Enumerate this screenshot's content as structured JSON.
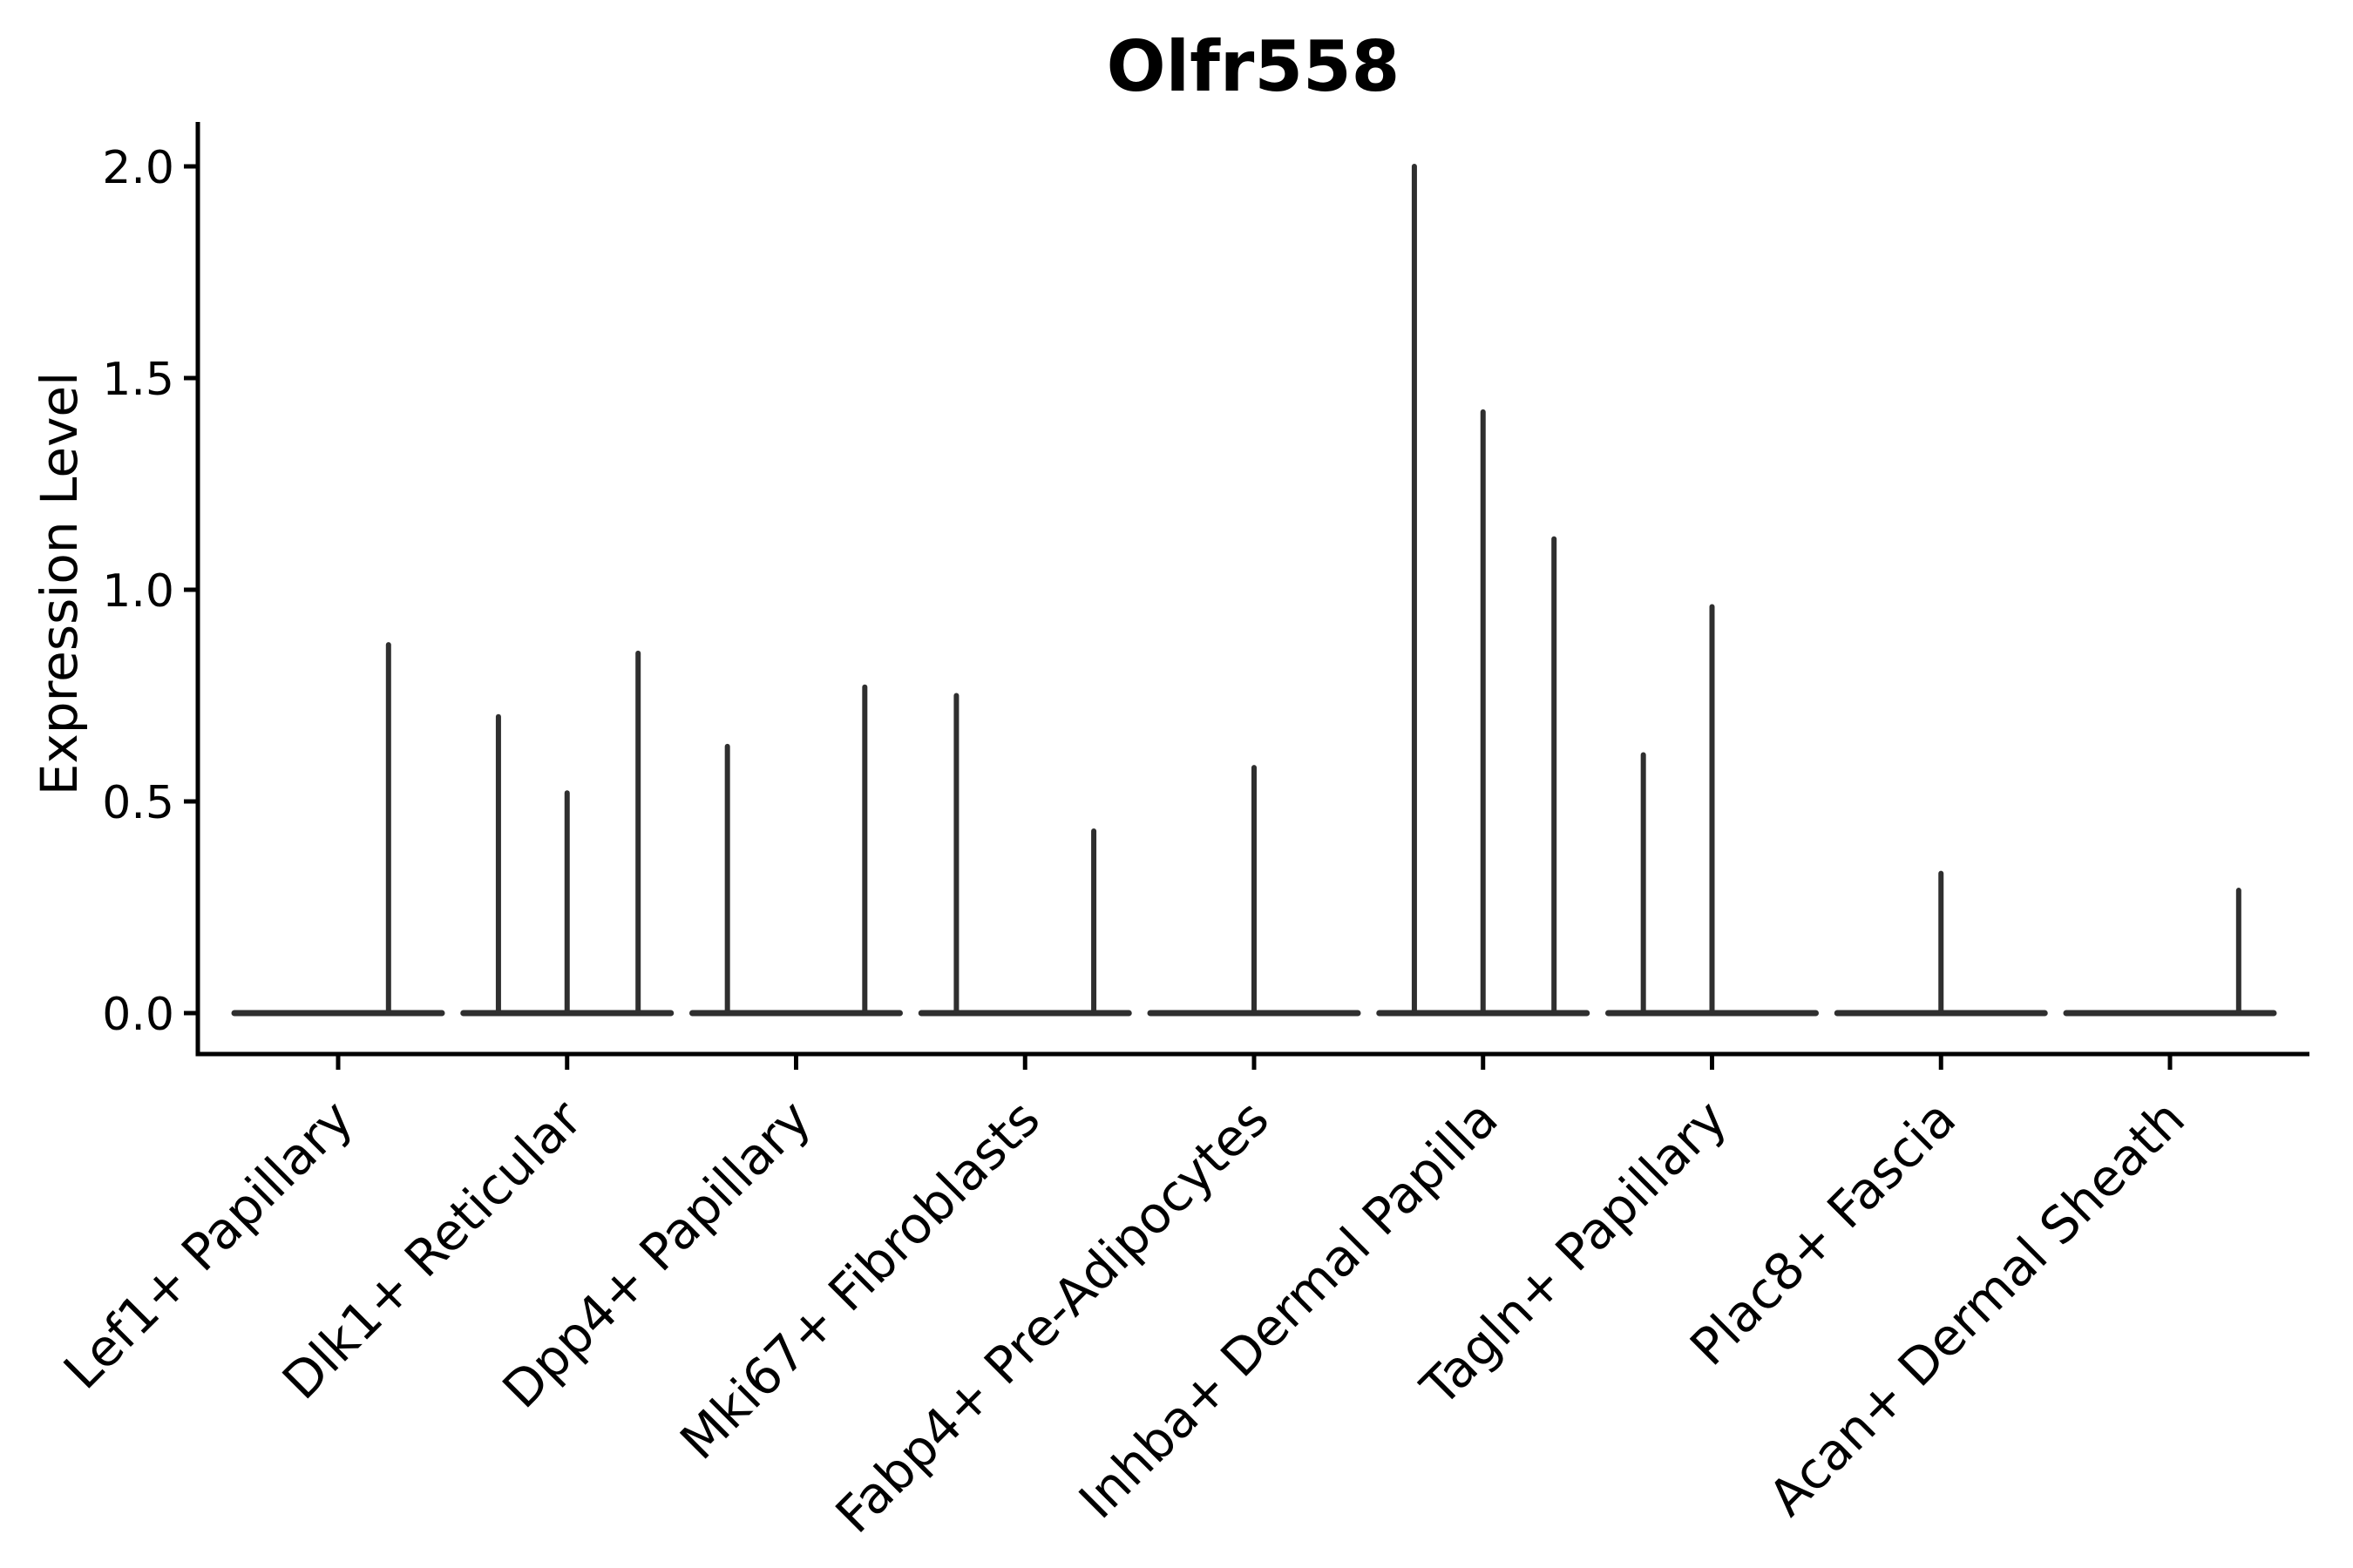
{
  "page": {
    "background": "#ffffff"
  },
  "chart_data": {
    "type": "violin",
    "title": "Olfr558",
    "xlabel": "",
    "ylabel": "Expression Level",
    "ylim": [
      -0.1,
      2.11
    ],
    "grid": false,
    "legend": "none",
    "style": {
      "line_color": "#2f2f2f",
      "axis_color": "#000000",
      "text_color": "#000000",
      "background": "#ffffff",
      "violin_body_width_frac": 0.9
    },
    "yticks": [
      {
        "value": 0.0,
        "label": "0.0"
      },
      {
        "value": 0.5,
        "label": "0.5"
      },
      {
        "value": 1.0,
        "label": "1.0"
      },
      {
        "value": 1.5,
        "label": "1.5"
      },
      {
        "value": 2.0,
        "label": "2.0"
      }
    ],
    "categories": [
      "Lef1+ Papillary",
      "Dlk1+ Reticular",
      "Dpp4+ Papillary",
      "Mki67+ Fibroblasts",
      "Fabp4+ Pre-Adipocytes",
      "Inhba+ Dermal Papilla",
      "Tagln+ Papillary",
      "Plac8+ Fascia",
      "Acan+ Dermal Sheath"
    ],
    "violins": [
      {
        "category": "Lef1+ Papillary",
        "base_value": 0.0,
        "spikes": [
          {
            "offset": 0.22,
            "value": 0.87
          }
        ]
      },
      {
        "category": "Dlk1+ Reticular",
        "base_value": 0.0,
        "spikes": [
          {
            "offset": -0.3,
            "value": 0.7
          },
          {
            "offset": 0.0,
            "value": 0.52
          },
          {
            "offset": 0.31,
            "value": 0.85
          }
        ]
      },
      {
        "category": "Dpp4+ Papillary",
        "base_value": 0.0,
        "spikes": [
          {
            "offset": -0.3,
            "value": 0.63
          },
          {
            "offset": 0.3,
            "value": 0.77
          }
        ]
      },
      {
        "category": "Mki67+ Fibroblasts",
        "base_value": 0.0,
        "spikes": [
          {
            "offset": -0.3,
            "value": 0.75
          },
          {
            "offset": 0.3,
            "value": 0.43
          }
        ]
      },
      {
        "category": "Fabp4+ Pre-Adipocytes",
        "base_value": 0.0,
        "spikes": [
          {
            "offset": 0.0,
            "value": 0.58
          }
        ]
      },
      {
        "category": "Inhba+ Dermal Papilla",
        "base_value": 0.0,
        "spikes": [
          {
            "offset": -0.3,
            "value": 2.0
          },
          {
            "offset": 0.0,
            "value": 1.42
          },
          {
            "offset": 0.31,
            "value": 1.12
          }
        ]
      },
      {
        "category": "Tagln+ Papillary",
        "base_value": 0.0,
        "spikes": [
          {
            "offset": -0.3,
            "value": 0.61
          },
          {
            "offset": 0.0,
            "value": 0.96
          }
        ]
      },
      {
        "category": "Plac8+ Fascia",
        "base_value": 0.0,
        "spikes": [
          {
            "offset": 0.0,
            "value": 0.33
          }
        ]
      },
      {
        "category": "Acan+ Dermal Sheath",
        "base_value": 0.0,
        "spikes": [
          {
            "offset": 0.3,
            "value": 0.29
          }
        ]
      }
    ]
  }
}
